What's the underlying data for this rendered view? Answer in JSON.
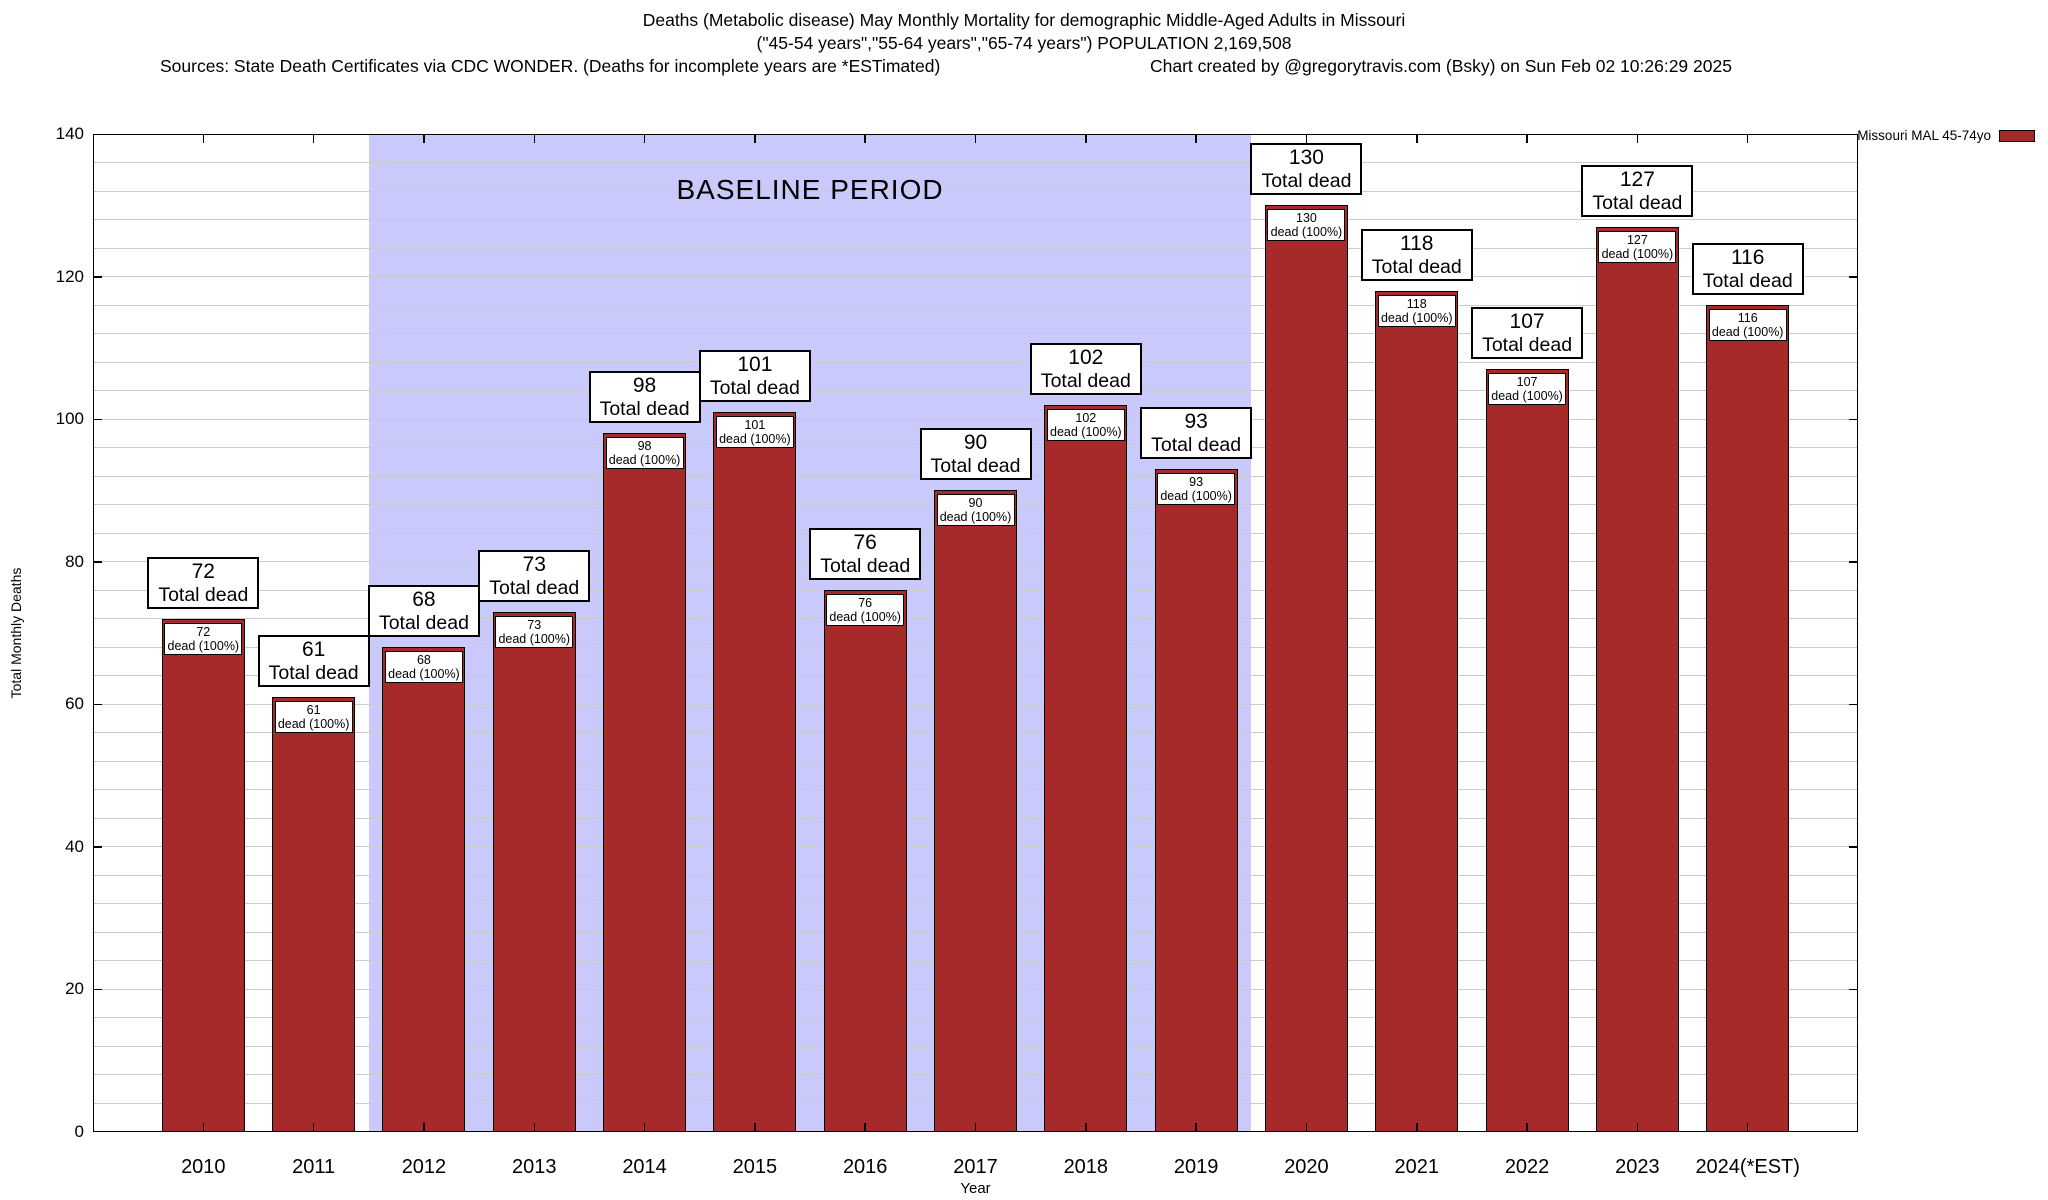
{
  "title": {
    "line1": "Deaths (Metabolic disease) May Monthly Mortality for demographic Middle-Aged Adults in Missouri",
    "line2": "(\"45-54 years\",\"55-64 years\",\"65-74 years\") POPULATION 2,169,508",
    "sources": "Sources: State Death Certificates via CDC WONDER. (Deaths for incomplete years are *ESTimated)",
    "credit": "Chart created by @gregorytravis.com (Bsky) on Sun Feb 02 10:26:29 2025"
  },
  "legend": {
    "label": "Missouri MAL 45-74yo"
  },
  "axes": {
    "ylabel": "Total Monthly Deaths",
    "xlabel": "Year",
    "yticks": [
      0,
      20,
      40,
      60,
      80,
      100,
      120,
      140
    ]
  },
  "colors": {
    "bar_fill": "#A62A2A",
    "bar_border": "#000000",
    "baseline_shade": "#C9C9FB",
    "gridline": "#CBCBCB"
  },
  "chart_data": {
    "type": "bar",
    "title": "Deaths (Metabolic disease) May Monthly Mortality for demographic Middle-Aged Adults in Missouri",
    "x": [
      "2010",
      "2011",
      "2012",
      "2013",
      "2014",
      "2015",
      "2016",
      "2017",
      "2018",
      "2019",
      "2020",
      "2021",
      "2022",
      "2023",
      "2024(*EST)"
    ],
    "values": [
      72,
      61,
      68,
      73,
      98,
      101,
      76,
      90,
      102,
      93,
      130,
      118,
      107,
      127,
      116
    ],
    "series_name": "Missouri MAL 45-74yo",
    "xlabel": "Year",
    "ylabel": "Total Monthly Deaths",
    "ylim": [
      0,
      140
    ],
    "ytick_step": 20,
    "minor_grid_step": 4,
    "grid": "horizontal",
    "legend_position": "top-right",
    "bar_top_label_suffix": "Total dead",
    "bar_inner_label_suffix": "dead (100%)",
    "baseline_period": {
      "from": "2012",
      "to": "2019",
      "label": "BASELINE PERIOD"
    }
  }
}
